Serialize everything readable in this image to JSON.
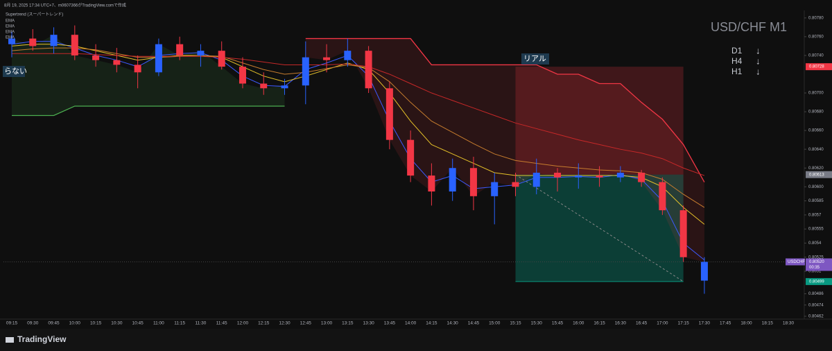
{
  "header": "8月 19, 2025 17:34 UTC+7、m0607366がTradingView.comで作成",
  "footer": "TradingView",
  "chart_data": {
    "type": "candlestick",
    "title": "USD/CHF M1",
    "indicator_title": "Supertrend (スーパートレンド)",
    "annotations": [
      {
        "text": "D1",
        "arrow": "↓"
      },
      {
        "text": "H4",
        "arrow": "↓"
      },
      {
        "text": "H1",
        "arrow": "↓"
      }
    ],
    "labels": [
      "らない",
      "リアル"
    ],
    "x": [
      "09:15",
      "09:30",
      "09:45",
      "10:00",
      "10:15",
      "10:30",
      "10:45",
      "11:00",
      "11:15",
      "11:30",
      "11:45",
      "12:00",
      "12:15",
      "12:30",
      "12:45",
      "13:00",
      "13:15",
      "13:30",
      "13:45",
      "14:00",
      "14:15",
      "14:30",
      "14:45",
      "15:00",
      "15:15",
      "15:30",
      "15:45",
      "16:00",
      "16:15",
      "16:30",
      "16:45",
      "17:00",
      "17:15",
      "17:30"
    ],
    "open": [
      0.80752,
      0.80758,
      0.8075,
      0.80762,
      0.8074,
      0.80735,
      0.8073,
      0.80722,
      0.80752,
      0.8074,
      0.80745,
      0.80728,
      0.8071,
      0.80705,
      0.80708,
      0.80738,
      0.80735,
      0.80745,
      0.80705,
      0.8065,
      0.80612,
      0.80595,
      0.8062,
      0.8059,
      0.80605,
      0.806,
      0.80615,
      0.8061,
      0.80612,
      0.8061,
      0.80615,
      0.80605,
      0.80575,
      0.805
    ],
    "high": [
      0.80765,
      0.80768,
      0.8077,
      0.80772,
      0.80752,
      0.80748,
      0.8074,
      0.80758,
      0.8076,
      0.80752,
      0.80755,
      0.80738,
      0.80722,
      0.80715,
      0.80755,
      0.80752,
      0.80758,
      0.8075,
      0.80712,
      0.8066,
      0.80625,
      0.8063,
      0.80632,
      0.80615,
      0.80615,
      0.8063,
      0.8062,
      0.80625,
      0.80622,
      0.80622,
      0.80618,
      0.8061,
      0.8058,
      0.80525
    ],
    "low": [
      0.80738,
      0.80745,
      0.80742,
      0.80735,
      0.80728,
      0.80722,
      0.80705,
      0.80718,
      0.80735,
      0.80728,
      0.80725,
      0.80705,
      0.80698,
      0.80698,
      0.80688,
      0.80722,
      0.80728,
      0.807,
      0.8064,
      0.80605,
      0.8058,
      0.80585,
      0.80575,
      0.8056,
      0.8059,
      0.80592,
      0.80595,
      0.80598,
      0.806,
      0.80605,
      0.806,
      0.8057,
      0.8052,
      0.80486
    ],
    "close": [
      0.80758,
      0.8075,
      0.80762,
      0.8074,
      0.80735,
      0.8073,
      0.80722,
      0.80752,
      0.8074,
      0.80745,
      0.80728,
      0.8071,
      0.80705,
      0.80708,
      0.80738,
      0.80735,
      0.80745,
      0.80705,
      0.8065,
      0.80612,
      0.80595,
      0.8062,
      0.8059,
      0.80605,
      0.806,
      0.80615,
      0.8061,
      0.80612,
      0.8061,
      0.80615,
      0.80605,
      0.80575,
      0.80525,
      0.8052
    ],
    "up_color": "#2962ff",
    "down_color": "#f23645",
    "series": [
      {
        "name": "EMA",
        "color": "#3d5afe",
        "values": [
          0.80752,
          0.80755,
          0.80755,
          0.80748,
          0.8074,
          0.80735,
          0.80728,
          0.8074,
          0.80742,
          0.80743,
          0.80735,
          0.80718,
          0.80708,
          0.80707,
          0.80725,
          0.80732,
          0.8074,
          0.80718,
          0.8067,
          0.8063,
          0.80605,
          0.80612,
          0.80598,
          0.806,
          0.80602,
          0.8061,
          0.8061,
          0.80611,
          0.8061,
          0.80613,
          0.80608,
          0.80585,
          0.8054,
          0.80522
        ]
      },
      {
        "name": "EMA",
        "color": "#e6c229",
        "values": [
          0.8075,
          0.80752,
          0.80752,
          0.8075,
          0.80745,
          0.8074,
          0.80735,
          0.80738,
          0.8074,
          0.8074,
          0.80738,
          0.80728,
          0.80718,
          0.80712,
          0.80718,
          0.80725,
          0.80732,
          0.80725,
          0.807,
          0.8067,
          0.80645,
          0.80635,
          0.80625,
          0.80615,
          0.80612,
          0.80612,
          0.80612,
          0.80612,
          0.80612,
          0.80612,
          0.8061,
          0.806,
          0.80578,
          0.8056
        ]
      },
      {
        "name": "EMA",
        "color": "#c77d2e",
        "values": [
          0.80745,
          0.80747,
          0.80748,
          0.80748,
          0.80746,
          0.80742,
          0.80738,
          0.80738,
          0.80739,
          0.8074,
          0.80739,
          0.80732,
          0.80725,
          0.8072,
          0.80722,
          0.80726,
          0.8073,
          0.80727,
          0.80712,
          0.8069,
          0.8067,
          0.80658,
          0.80646,
          0.80635,
          0.80628,
          0.80625,
          0.80622,
          0.8062,
          0.80618,
          0.80617,
          0.80615,
          0.80608,
          0.80592,
          0.80578
        ]
      },
      {
        "name": "EMA",
        "color": "#c62828",
        "values": [
          0.80742,
          0.80742,
          0.80742,
          0.80742,
          0.80741,
          0.8074,
          0.80739,
          0.80739,
          0.80739,
          0.80739,
          0.80738,
          0.80736,
          0.80733,
          0.8073,
          0.8073,
          0.8073,
          0.80731,
          0.80728,
          0.8072,
          0.8071,
          0.807,
          0.80692,
          0.80684,
          0.80676,
          0.80668,
          0.80662,
          0.80656,
          0.8065,
          0.80645,
          0.8064,
          0.80636,
          0.8063,
          0.8062,
          0.80612
        ]
      }
    ],
    "supertrend": [
      {
        "color": "#4caf50",
        "values": [
          0.80676,
          0.80676,
          0.80676,
          0.80686,
          0.80686,
          0.80686,
          0.80686,
          0.80686,
          0.80686,
          0.80686,
          0.80686,
          0.80686,
          0.80686,
          0.80686,
          null,
          null,
          null,
          null,
          null,
          null,
          null,
          null,
          null,
          null,
          null,
          null,
          null,
          null,
          null,
          null,
          null,
          null,
          null,
          null
        ]
      },
      {
        "color": "#f23645",
        "values": [
          null,
          null,
          null,
          null,
          null,
          null,
          null,
          null,
          null,
          null,
          null,
          null,
          null,
          null,
          0.80758,
          0.80758,
          0.80758,
          0.80758,
          0.80758,
          0.80758,
          0.8073,
          0.8073,
          0.8073,
          0.8073,
          0.8073,
          0.8073,
          0.8072,
          0.8072,
          0.8071,
          0.8071,
          0.8069,
          0.80672,
          0.80645,
          0.80605
        ]
      }
    ],
    "position": {
      "start": "15:15",
      "end": "17:15",
      "stop": {
        "value": 0.80728,
        "label": "0.80728",
        "color": "#f23645"
      },
      "entry": {
        "value": 0.80613,
        "label": "0.80613",
        "color": "#787b86"
      },
      "target": {
        "value": 0.80499,
        "label": "0.80499",
        "color": "#089981"
      }
    },
    "last": {
      "name": "USDCHF",
      "value": 0.8052,
      "label": "0.80520",
      "countdown": "00:35",
      "color": "#7e57c2"
    },
    "ylim": [
      0.80459,
      0.80788
    ],
    "yticks": [
      {
        "value": 0.8078,
        "label": "0.80780"
      },
      {
        "value": 0.8076,
        "label": "0.80760"
      },
      {
        "value": 0.8074,
        "label": "0.80740"
      },
      {
        "value": 0.807,
        "label": "0.80700"
      },
      {
        "value": 0.8068,
        "label": "0.80680"
      },
      {
        "value": 0.8066,
        "label": "0.80660"
      },
      {
        "value": 0.8064,
        "label": "0.80640"
      },
      {
        "value": 0.8062,
        "label": "0.80620"
      },
      {
        "value": 0.806,
        "label": "0.80600"
      },
      0.80585,
      0.8057,
      0.80555,
      0.8054,
      0.80525,
      0.8051,
      0.80486,
      0.80474,
      0.80462
    ],
    "xticks": [
      "09:15",
      "09:30",
      "09:45",
      "10:00",
      "10:15",
      "10:30",
      "10:45",
      "11:00",
      "11:15",
      "11:30",
      "11:45",
      "12:00",
      "12:15",
      "12:30",
      "12:45",
      "13:00",
      "13:15",
      "13:30",
      "13:45",
      "14:00",
      "14:15",
      "14:30",
      "14:45",
      "15:00",
      "15:15",
      "15:30",
      "15:45",
      "16:00",
      "16:15",
      "16:30",
      "16:45",
      "17:00",
      "17:15",
      "17:30",
      "17:45",
      "18:00",
      "18:15",
      "18:30"
    ]
  }
}
